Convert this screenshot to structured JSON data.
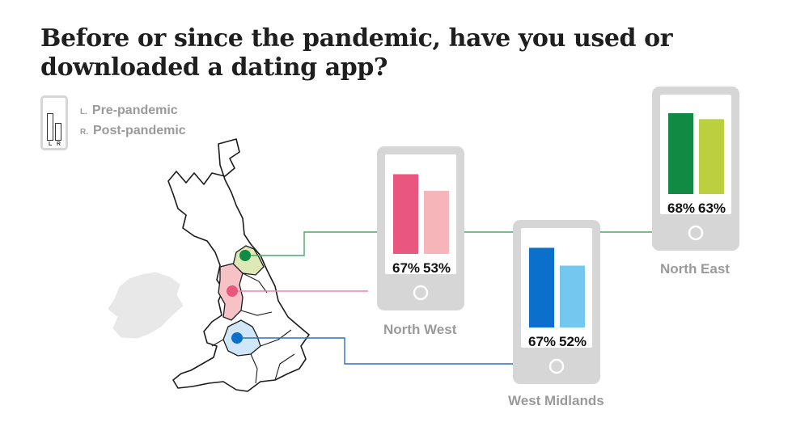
{
  "title": "Before or since the pandemic, have you used or downloaded a dating app?",
  "legend": {
    "left_prefix": "L.",
    "left_label": "Pre-pandemic",
    "right_prefix": "R.",
    "right_label": "Post-pandemic",
    "icon_letter_left": "L",
    "icon_letter_right": "R"
  },
  "colors": {
    "phone_frame": "#d6d6d6",
    "north_west_pre": "#e9577e",
    "north_west_post": "#f5b5b9",
    "north_east_pre": "#118a44",
    "north_east_post": "#bccf3e",
    "west_midlands_pre": "#0b6fcc",
    "west_midlands_post": "#74c8f0",
    "connector_north_east": "#4aa86a",
    "connector_north_west": "#e987a0",
    "connector_west_midlands": "#2a6fc2"
  },
  "chart_data": {
    "type": "bar",
    "categories": [
      "North West",
      "West Midlands",
      "North East"
    ],
    "series": [
      {
        "name": "Pre-pandemic",
        "values": [
          67,
          67,
          68
        ]
      },
      {
        "name": "Post-pandemic",
        "values": [
          53,
          52,
          63
        ]
      }
    ],
    "value_labels": {
      "North West": [
        "67%",
        "53%"
      ],
      "West Midlands": [
        "67%",
        "52%"
      ],
      "North East": [
        "68%",
        "63%"
      ]
    },
    "title": "Before or since the pandemic, have you used or downloaded a dating app?",
    "xlabel": "",
    "ylabel": "",
    "grid": false,
    "legend": "top-left"
  }
}
